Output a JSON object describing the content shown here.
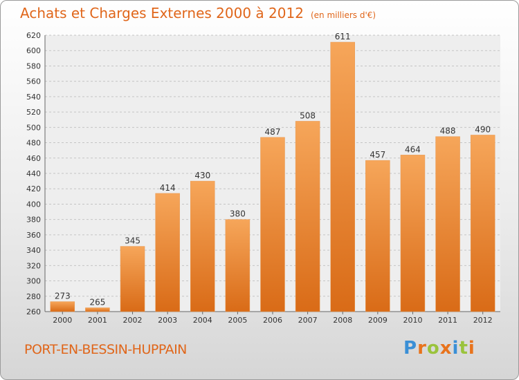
{
  "title": "Achats et Charges Externes 2000 à 2012",
  "unit": "(en milliers d'€)",
  "commune": "PORT-EN-BESSIN-HUPPAIN",
  "logo": {
    "letters": [
      "P",
      "r",
      "o",
      "x",
      "i",
      "t",
      "i"
    ],
    "colors": [
      "#3a8fd6",
      "#e8731c",
      "#9ac33c",
      "#e8731c",
      "#3a8fd6",
      "#9ac33c",
      "#e8731c"
    ]
  },
  "colors": {
    "bar_top": "#f6a65a",
    "bar_bottom": "#d96b17",
    "title": "#e0661a"
  },
  "chart_data": {
    "type": "bar",
    "categories": [
      "2000",
      "2001",
      "2002",
      "2003",
      "2004",
      "2005",
      "2006",
      "2007",
      "2008",
      "2009",
      "2010",
      "2011",
      "2012"
    ],
    "values": [
      273,
      265,
      345,
      414,
      430,
      380,
      487,
      508,
      611,
      457,
      464,
      488,
      490
    ],
    "ylim": [
      260,
      620
    ],
    "yticks": [
      260,
      280,
      300,
      320,
      340,
      360,
      380,
      400,
      420,
      440,
      460,
      480,
      500,
      520,
      540,
      560,
      580,
      600,
      620
    ],
    "grid": true
  }
}
